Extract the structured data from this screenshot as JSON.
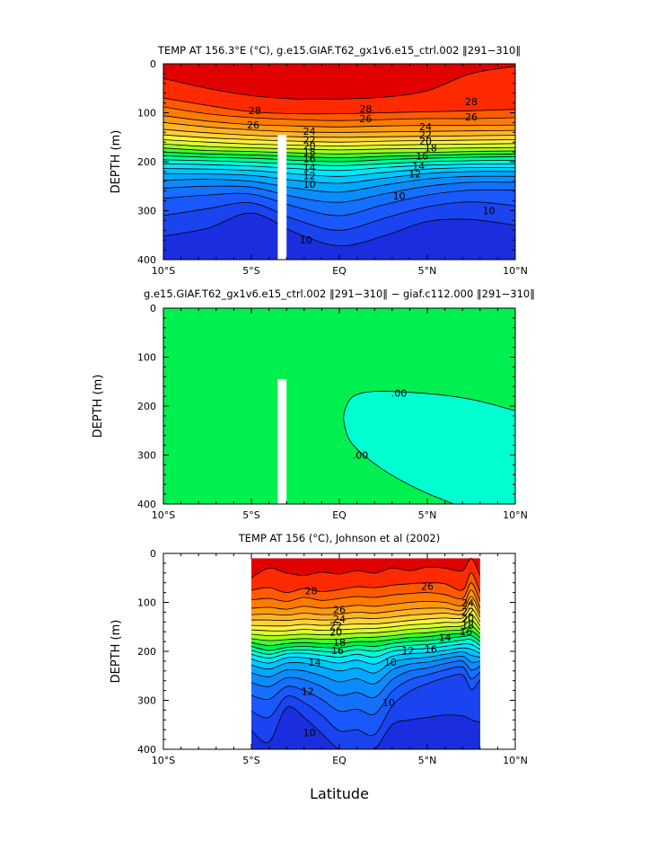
{
  "figure": {
    "xlabel": "Latitude"
  },
  "chart_data": [
    {
      "type": "heatmap",
      "title": "TEMP AT 156.3°E (°C), g.e15.GIAF.T62_gx1v6.e15_ctrl.002 ‖291−310‖",
      "ylabel": "DEPTH (m)",
      "xlim": [
        -10,
        10
      ],
      "ylim": [
        400,
        0
      ],
      "xticks": [
        -10,
        -5,
        0,
        5,
        10
      ],
      "xticklabels": [
        "10°S",
        "5°S",
        "EQ",
        "5°N",
        "10°N"
      ],
      "yticks": [
        0,
        100,
        200,
        300,
        400
      ],
      "land_mask": {
        "x": [
          -3.5,
          -3.0
        ],
        "y": [
          145,
          400
        ]
      },
      "isotherm_levels": [
        29,
        28,
        27,
        26,
        25,
        24,
        23,
        22,
        21,
        20,
        19,
        18,
        17,
        16,
        15,
        14,
        13,
        12,
        11,
        10,
        9
      ],
      "isotherm_depth_profiles": {
        "x": [
          -10,
          -7.5,
          -5,
          -2.5,
          0,
          2.5,
          5,
          7.5,
          10
        ],
        "29": [
          30,
          50,
          65,
          72,
          72,
          68,
          55,
          20,
          5
        ],
        "28": [
          70,
          85,
          98,
          102,
          102,
          100,
          98,
          96,
          93
        ],
        "27": [
          88,
          102,
          110,
          114,
          116,
          114,
          112,
          112,
          110
        ],
        "26": [
          106,
          117,
          124,
          127,
          129,
          127,
          126,
          126,
          125
        ],
        "25": [
          120,
          129,
          135,
          139,
          140,
          139,
          138,
          137,
          136
        ],
        "24": [
          134,
          141,
          146,
          149,
          150,
          149,
          148,
          147,
          146
        ],
        "23": [
          145,
          151,
          155,
          158,
          160,
          158,
          157,
          156,
          155
        ],
        "22": [
          155,
          160,
          164,
          166,
          168,
          166,
          165,
          164,
          163
        ],
        "21": [
          164,
          169,
          172,
          174,
          176,
          174,
          173,
          172,
          171
        ],
        "20": [
          172,
          177,
          179,
          182,
          184,
          182,
          181,
          179,
          178
        ],
        "19": [
          180,
          184,
          186,
          189,
          192,
          189,
          187,
          185,
          184
        ],
        "18": [
          188,
          191,
          193,
          197,
          200,
          196,
          193,
          191,
          190
        ],
        "17": [
          196,
          198,
          201,
          205,
          208,
          204,
          200,
          198,
          197
        ],
        "16": [
          204,
          206,
          209,
          214,
          218,
          212,
          207,
          205,
          204
        ],
        "15": [
          214,
          215,
          218,
          225,
          230,
          222,
          215,
          212,
          212
        ],
        "14": [
          224,
          225,
          228,
          238,
          244,
          234,
          224,
          220,
          220
        ],
        "13": [
          238,
          236,
          240,
          254,
          262,
          248,
          235,
          230,
          230
        ],
        "12": [
          254,
          250,
          252,
          272,
          283,
          266,
          250,
          242,
          242
        ],
        "11": [
          275,
          268,
          266,
          292,
          310,
          288,
          268,
          258,
          258
        ],
        "10": [
          310,
          296,
          284,
          318,
          340,
          316,
          292,
          282,
          290
        ],
        "9": [
          352,
          336,
          305,
          345,
          372,
          352,
          322,
          318,
          330
        ]
      },
      "contour_labels": [
        "28",
        "26",
        "24",
        "22",
        "20",
        "18",
        "16",
        "14",
        "12",
        "10"
      ]
    },
    {
      "type": "heatmap",
      "title": "g.e15.GIAF.T62_gx1v6.e15_ctrl.002 ‖291−310‖ − giaf.c112.000 ‖291−310‖",
      "ylabel": "DEPTH (m)",
      "xlim": [
        -10,
        10
      ],
      "ylim": [
        400,
        0
      ],
      "xticks": [
        -10,
        -5,
        0,
        5,
        10
      ],
      "xticklabels": [
        "10°S",
        "5°S",
        "EQ",
        "5°N",
        "10°N"
      ],
      "yticks": [
        0,
        100,
        200,
        300,
        400
      ],
      "land_mask": {
        "x": [
          -3.5,
          -3.0
        ],
        "y": [
          145,
          400
        ]
      },
      "zero_contour": {
        "x": [
          10,
          8,
          6,
          4,
          2,
          0.8,
          0.3,
          0.3,
          0.8,
          2.5,
          4.5,
          6.5
        ],
        "depth": [
          210,
          190,
          178,
          172,
          170,
          180,
          210,
          240,
          280,
          330,
          370,
          400
        ]
      },
      "contour_labels": [
        ".00",
        ".00"
      ]
    },
    {
      "type": "heatmap",
      "title": "TEMP AT 156 (°C), Johnson et al (2002)",
      "ylabel": "DEPTH (m)",
      "xlim": [
        -10,
        10
      ],
      "ylim": [
        400,
        0
      ],
      "xticks": [
        -10,
        -5,
        0,
        5,
        10
      ],
      "xticklabels": [
        "10°S",
        "5°S",
        "EQ",
        "5°N",
        "10°N"
      ],
      "yticks": [
        0,
        100,
        200,
        300,
        400
      ],
      "data_extent": {
        "x": [
          -5,
          8
        ],
        "y": [
          10,
          400
        ]
      },
      "isotherm_levels": [
        29,
        28,
        27,
        26,
        25,
        24,
        23,
        22,
        21,
        20,
        19,
        18,
        17,
        16,
        15,
        14,
        13,
        12,
        11,
        10,
        9
      ],
      "isotherm_depth_profiles": {
        "x": [
          -5,
          -4,
          -3,
          -2,
          -1,
          0,
          1,
          2,
          3,
          4,
          5,
          6,
          7,
          7.5,
          8
        ],
        "29": [
          50,
          30,
          40,
          45,
          38,
          42,
          35,
          40,
          30,
          35,
          28,
          30,
          35,
          10,
          45
        ],
        "28": [
          75,
          70,
          80,
          72,
          78,
          74,
          68,
          70,
          65,
          62,
          60,
          62,
          75,
          40,
          80
        ],
        "27": [
          95,
          92,
          98,
          90,
          96,
          92,
          88,
          90,
          85,
          82,
          80,
          84,
          92,
          60,
          98
        ],
        "26": [
          112,
          110,
          114,
          108,
          112,
          110,
          106,
          108,
          104,
          100,
          98,
          100,
          106,
          75,
          112
        ],
        "25": [
          125,
          124,
          126,
          122,
          125,
          124,
          120,
          122,
          118,
          114,
          112,
          112,
          116,
          88,
          122
        ],
        "24": [
          136,
          136,
          137,
          134,
          136,
          135,
          132,
          133,
          130,
          126,
          124,
          122,
          124,
          100,
          130
        ],
        "23": [
          147,
          148,
          148,
          145,
          147,
          146,
          144,
          144,
          141,
          137,
          134,
          132,
          132,
          112,
          140
        ],
        "22": [
          156,
          158,
          158,
          155,
          157,
          156,
          154,
          153,
          150,
          146,
          144,
          141,
          140,
          124,
          148
        ],
        "21": [
          165,
          168,
          167,
          165,
          166,
          165,
          163,
          162,
          159,
          155,
          153,
          150,
          148,
          136,
          156
        ],
        "20": [
          174,
          178,
          176,
          174,
          175,
          175,
          172,
          171,
          168,
          164,
          162,
          158,
          156,
          148,
          164
        ],
        "19": [
          182,
          188,
          184,
          182,
          184,
          184,
          180,
          180,
          176,
          172,
          170,
          166,
          163,
          158,
          172
        ],
        "18": [
          190,
          198,
          192,
          190,
          192,
          193,
          188,
          190,
          184,
          180,
          178,
          174,
          170,
          168,
          180
        ],
        "17": [
          198,
          206,
          198,
          197,
          200,
          202,
          196,
          200,
          192,
          188,
          186,
          182,
          177,
          176,
          188
        ],
        "16": [
          206,
          214,
          205,
          204,
          208,
          212,
          206,
          212,
          200,
          196,
          194,
          190,
          185,
          186,
          196
        ],
        "15": [
          216,
          224,
          213,
          213,
          218,
          224,
          218,
          226,
          210,
          205,
          203,
          198,
          193,
          196,
          204
        ],
        "14": [
          228,
          236,
          224,
          224,
          232,
          240,
          234,
          244,
          222,
          215,
          212,
          206,
          201,
          208,
          212
        ],
        "13": [
          244,
          252,
          238,
          240,
          250,
          262,
          256,
          266,
          238,
          226,
          222,
          215,
          210,
          222,
          220
        ],
        "12": [
          264,
          272,
          254,
          258,
          272,
          290,
          284,
          294,
          258,
          240,
          234,
          225,
          220,
          238,
          230
        ],
        "11": [
          290,
          298,
          272,
          280,
          298,
          322,
          318,
          328,
          282,
          258,
          248,
          238,
          232,
          256,
          242
        ],
        "10": [
          322,
          335,
          292,
          305,
          330,
          362,
          360,
          370,
          312,
          282,
          266,
          254,
          248,
          278,
          258
        ],
        "9": [
          362,
          385,
          315,
          335,
          368,
          400,
          400,
          400,
          350,
          340,
          335,
          330,
          332,
          340,
          345
        ]
      },
      "contour_labels": [
        "28",
        "26",
        "26",
        "24",
        "24",
        "22",
        "22",
        "20",
        "20",
        "18",
        "18",
        "16",
        "16",
        "14",
        "14",
        "12",
        "12",
        "10",
        "10"
      ]
    }
  ]
}
